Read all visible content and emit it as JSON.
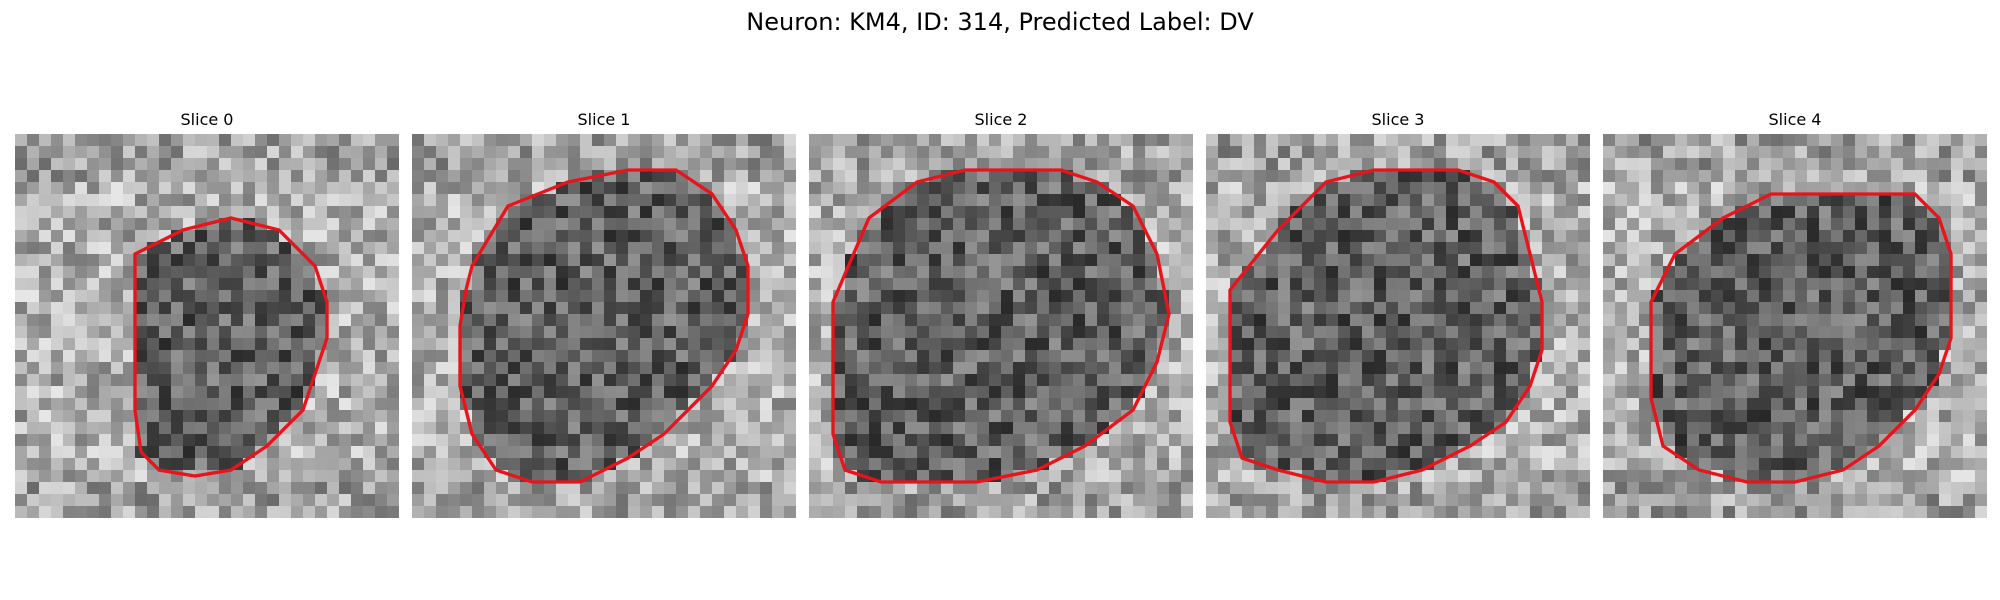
{
  "figure": {
    "title": "Neuron: KM4, ID: 314, Predicted Label: DV"
  },
  "slices": [
    {
      "label": "Slice 0"
    },
    {
      "label": "Slice 1"
    },
    {
      "label": "Slice 2"
    },
    {
      "label": "Slice 3"
    },
    {
      "label": "Slice 4"
    }
  ],
  "colors": {
    "contour": "#e8141b",
    "background": "#ffffff"
  }
}
